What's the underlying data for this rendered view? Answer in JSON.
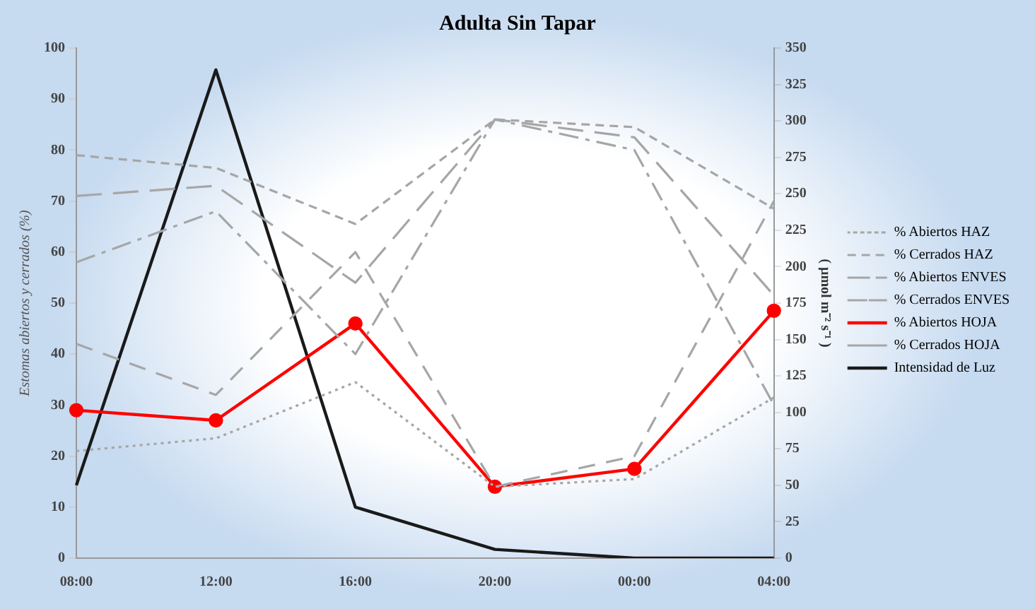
{
  "chart_data": {
    "type": "line",
    "title": "Adulta Sin Tapar",
    "ylabel": "Estomas abiertos y cerrados (%)",
    "y2label": "( µmol m⁻² s⁻¹ )",
    "categories": [
      "08:00",
      "12:00",
      "16:00",
      "20:00",
      "00:00",
      "04:00"
    ],
    "ylim": [
      0,
      100
    ],
    "yticks": [
      0,
      10,
      20,
      30,
      40,
      50,
      60,
      70,
      80,
      90,
      100
    ],
    "y2lim": [
      0,
      350
    ],
    "y2ticks": [
      0,
      25,
      50,
      75,
      100,
      125,
      150,
      175,
      200,
      225,
      250,
      275,
      300,
      325,
      350
    ],
    "grid": false,
    "legend": "right",
    "series": [
      {
        "name": "% Abiertos HAZ",
        "color": "#a6a6a6",
        "line_style": "dotted",
        "marker": "none",
        "values": [
          21,
          23.5,
          34.5,
          14,
          15.5,
          31.5
        ]
      },
      {
        "name": "% Cerrados HAZ",
        "color": "#a6a6a6",
        "line_style": "dashed",
        "marker": "none",
        "values": [
          79,
          76.5,
          65.5,
          86,
          84.5,
          68.5
        ]
      },
      {
        "name": "% Abiertos ENVES",
        "color": "#a6a6a6",
        "line_style": "dashed",
        "marker": "none",
        "values": [
          42,
          32,
          60,
          14,
          20,
          70
        ]
      },
      {
        "name": "% Cerrados ENVES",
        "color": "#a6a6a6",
        "line_style": "dashed",
        "marker": "none",
        "values": [
          58,
          68,
          40,
          86,
          80,
          30
        ]
      },
      {
        "name": "% Abiertos HOJA",
        "color": "#ff0000",
        "line_style": "solid",
        "marker": "circle",
        "values": [
          29,
          27,
          46,
          14,
          17.5,
          48.5
        ]
      },
      {
        "name": "% Cerrados HOJA",
        "color": "#a6a6a6",
        "line_style": "dashed",
        "marker": "none",
        "values": [
          71,
          73,
          54,
          86,
          82.5,
          51.5
        ]
      },
      {
        "name": "Intensidad de Luz",
        "color": "#1a1a1a",
        "line_style": "solid",
        "marker": "none",
        "axis": "y2",
        "values": [
          50,
          335,
          35,
          6,
          0,
          0
        ]
      }
    ]
  }
}
